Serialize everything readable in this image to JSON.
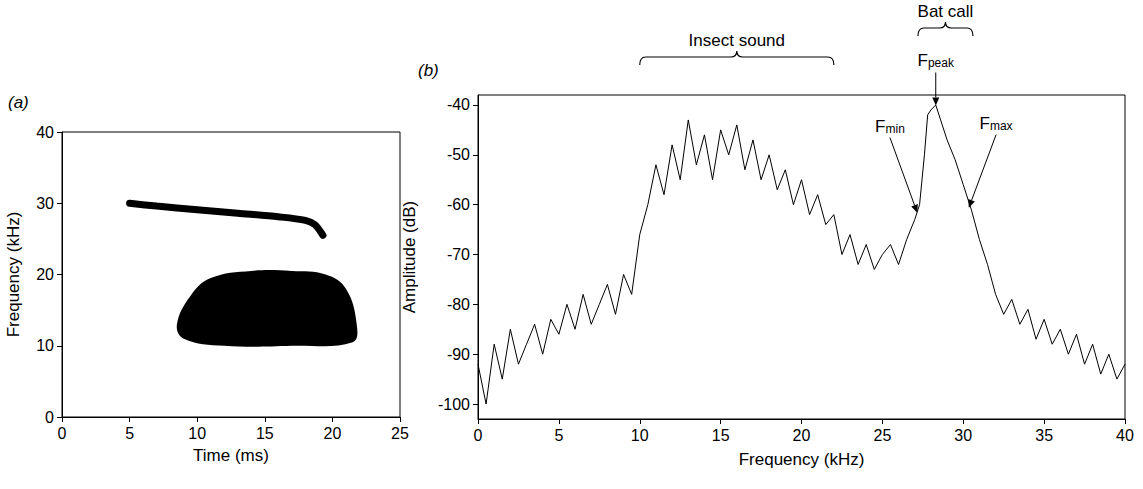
{
  "chart_data": [
    {
      "type": "spectrogram",
      "panel_label": "(a)",
      "x_label": "Time (ms)",
      "y_label": "Frequency (kHz)",
      "xlim": [
        0,
        25
      ],
      "xticks": [
        0,
        5,
        10,
        15,
        20,
        25
      ],
      "ylim": [
        0,
        40
      ],
      "yticks": [
        0,
        10,
        20,
        30,
        40
      ],
      "grid": false,
      "color": "#000000",
      "bat_call": {
        "x": [
          5,
          7,
          10,
          13,
          16,
          18,
          18.7,
          19.3
        ],
        "values": [
          30,
          29.6,
          29.1,
          28.6,
          28.1,
          27.6,
          27,
          25.5
        ]
      },
      "insect_sound": {
        "outline": [
          [
            8.5,
            13
          ],
          [
            9.5,
            17
          ],
          [
            11,
            19.5
          ],
          [
            14,
            20.5
          ],
          [
            17,
            20.5
          ],
          [
            19.5,
            20
          ],
          [
            21,
            18
          ],
          [
            21.8,
            13
          ],
          [
            21.5,
            10.5
          ],
          [
            17,
            10
          ],
          [
            12,
            10
          ],
          [
            9,
            11
          ]
        ]
      }
    },
    {
      "type": "line",
      "panel_label": "(b)",
      "x_label": "Frequency (kHz)",
      "y_label": "Amplitude (dB)",
      "xlim": [
        0,
        40
      ],
      "xticks": [
        0,
        5,
        10,
        15,
        20,
        25,
        30,
        35,
        40
      ],
      "ylim": [
        -103,
        -38
      ],
      "yticks": [
        -100,
        -90,
        -80,
        -70,
        -60,
        -50,
        -40
      ],
      "grid": false,
      "color": "#000000",
      "x": [
        0,
        0.5,
        1,
        1.5,
        2,
        2.5,
        3,
        3.5,
        4,
        4.5,
        5,
        5.5,
        6,
        6.5,
        7,
        7.5,
        8,
        8.5,
        9,
        9.5,
        10,
        10.5,
        11,
        11.5,
        12,
        12.5,
        13,
        13.5,
        14,
        14.5,
        15,
        15.5,
        16,
        16.5,
        17,
        17.5,
        18,
        18.5,
        19,
        19.5,
        20,
        20.5,
        21,
        21.5,
        22,
        22.5,
        23,
        23.5,
        24,
        24.5,
        25,
        25.5,
        26,
        26.5,
        27,
        27.3,
        27.6,
        27.8,
        28,
        28.3,
        28.6,
        29,
        29.5,
        30,
        30.5,
        31,
        31.5,
        32,
        32.5,
        33,
        33.5,
        34,
        34.5,
        35,
        35.5,
        36,
        36.5,
        37,
        37.5,
        38,
        38.5,
        39,
        39.5,
        40
      ],
      "values": [
        -92,
        -100,
        -88,
        -95,
        -85,
        -92,
        -88,
        -84,
        -90,
        -83,
        -86,
        -80,
        -85,
        -78,
        -84,
        -80,
        -76,
        -82,
        -74,
        -78,
        -66,
        -60,
        -52,
        -58,
        -48,
        -55,
        -43,
        -52,
        -46,
        -55,
        -45,
        -50,
        -44,
        -53,
        -47,
        -55,
        -50,
        -57,
        -53,
        -60,
        -55,
        -62,
        -58,
        -64,
        -62,
        -70,
        -66,
        -72,
        -68,
        -73,
        -70,
        -68,
        -72,
        -67,
        -63,
        -60,
        -50,
        -42,
        -41,
        -40,
        -43,
        -47,
        -51,
        -56,
        -61,
        -67,
        -72,
        -78,
        -82,
        -79,
        -84,
        -81,
        -87,
        -83,
        -88,
        -85,
        -90,
        -86,
        -92,
        -88,
        -94,
        -90,
        -95,
        -92
      ],
      "annotations": [
        {
          "text": "Insect sound",
          "span": [
            10,
            22
          ]
        },
        {
          "text": "Bat call",
          "span": [
            27.2,
            30.6
          ]
        },
        {
          "text": "F",
          "subscript": "min",
          "at": [
            27.2,
            -62
          ]
        },
        {
          "text": "F",
          "subscript": "peak",
          "at": [
            28.3,
            -40.5
          ]
        },
        {
          "text": "F",
          "subscript": "max",
          "at": [
            30.3,
            -61
          ]
        }
      ]
    }
  ]
}
